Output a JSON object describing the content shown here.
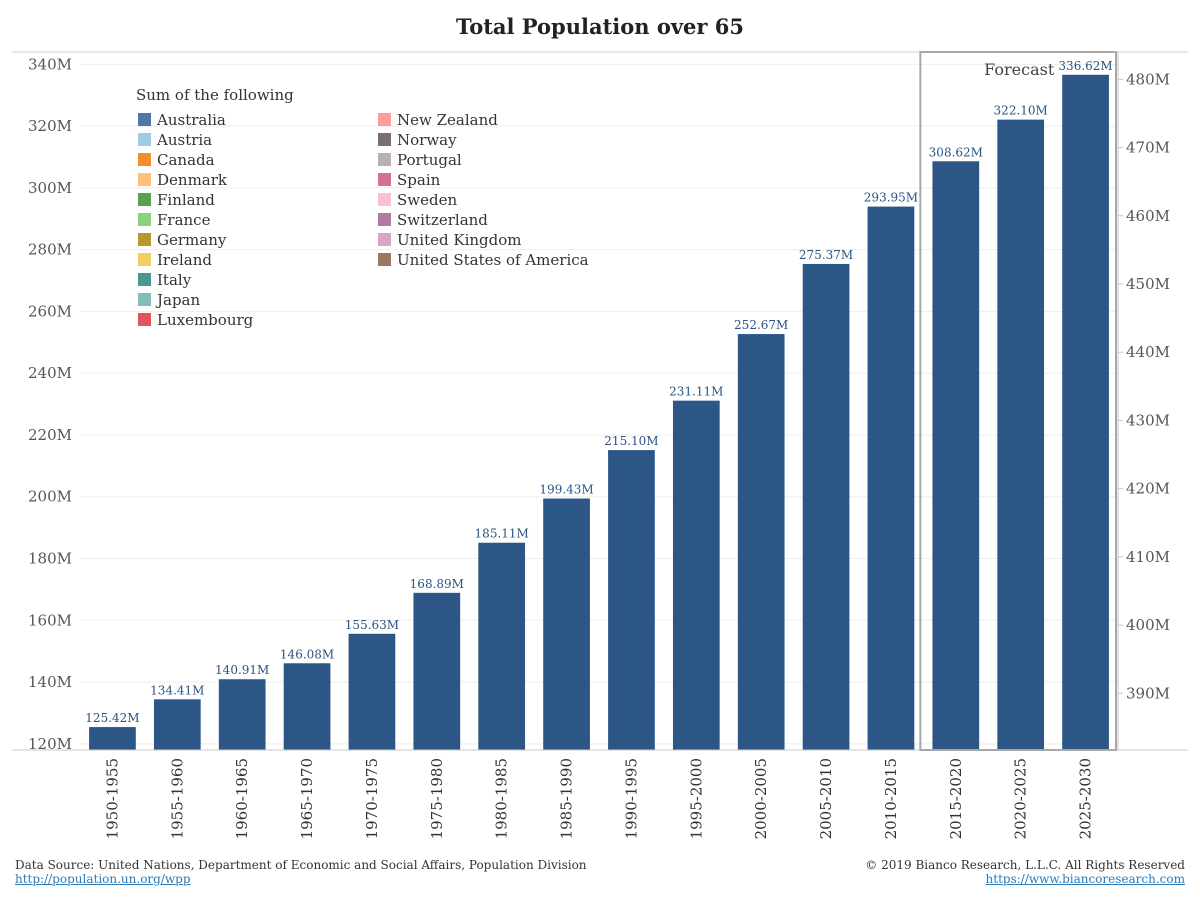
{
  "chart_data": {
    "type": "bar",
    "title": "Total Population over 65",
    "categories": [
      "1950-1955",
      "1955-1960",
      "1960-1965",
      "1965-1970",
      "1970-1975",
      "1975-1980",
      "1980-1985",
      "1985-1990",
      "1990-1995",
      "1995-2000",
      "2000-2005",
      "2005-2010",
      "2010-2015",
      "2015-2020",
      "2020-2025",
      "2025-2030"
    ],
    "values": [
      125.42,
      134.41,
      140.91,
      146.08,
      155.63,
      168.89,
      185.11,
      199.43,
      215.1,
      231.11,
      252.67,
      275.37,
      293.95,
      308.62,
      322.1,
      336.62
    ],
    "value_labels": [
      "125.42M",
      "134.41M",
      "140.91M",
      "146.08M",
      "155.63M",
      "168.89M",
      "185.11M",
      "199.43M",
      "215.10M",
      "231.11M",
      "252.67M",
      "275.37M",
      "293.95M",
      "308.62M",
      "322.10M",
      "336.62M"
    ],
    "bar_color": "#2c5685",
    "unit": "M",
    "ylim": [
      118,
      344
    ],
    "y_ticks": [
      120,
      140,
      160,
      180,
      200,
      220,
      240,
      260,
      280,
      300,
      320,
      340
    ],
    "y_tick_labels": [
      "120M",
      "140M",
      "160M",
      "180M",
      "200M",
      "220M",
      "240M",
      "260M",
      "280M",
      "300M",
      "320M",
      "340M"
    ],
    "y2_ticks": [
      390,
      400,
      410,
      420,
      430,
      440,
      450,
      460,
      470,
      480
    ],
    "y2_tick_labels": [
      "390M",
      "400M",
      "410M",
      "420M",
      "430M",
      "440M",
      "450M",
      "460M",
      "470M",
      "480M"
    ],
    "y2_domain": [
      381.7,
      484.0
    ],
    "forecast_label": "Forecast",
    "forecast_start_category": "2015-2020",
    "legend": {
      "title": "Sum of the following",
      "placement": "top-left",
      "items": [
        {
          "name": "Australia",
          "color": "#4e79a7"
        },
        {
          "name": "Austria",
          "color": "#a0cbe8"
        },
        {
          "name": "Canada",
          "color": "#f28e2b"
        },
        {
          "name": "Denmark",
          "color": "#ffbe7d"
        },
        {
          "name": "Finland",
          "color": "#59a14f"
        },
        {
          "name": "France",
          "color": "#8cd17d"
        },
        {
          "name": "Germany",
          "color": "#b6992d"
        },
        {
          "name": "Ireland",
          "color": "#f1ce63"
        },
        {
          "name": "Italy",
          "color": "#499894"
        },
        {
          "name": "Japan",
          "color": "#86bcb6"
        },
        {
          "name": "Luxembourg",
          "color": "#e15759"
        },
        {
          "name": "New Zealand",
          "color": "#ff9d9a"
        },
        {
          "name": "Norway",
          "color": "#79706e"
        },
        {
          "name": "Portugal",
          "color": "#bab0ac"
        },
        {
          "name": "Spain",
          "color": "#d37295"
        },
        {
          "name": "Sweden",
          "color": "#fabfd2"
        },
        {
          "name": "Switzerland",
          "color": "#b07aa1"
        },
        {
          "name": "United Kingdom",
          "color": "#d4a6c8"
        },
        {
          "name": "United States of America",
          "color": "#9d7660"
        }
      ]
    }
  },
  "footer": {
    "source_text": "Data Source: United Nations, Department of Economic and Social Affairs, Population Division",
    "source_link": "http://population.un.org/wpp",
    "copyright": "© 2019 Bianco Research, L.L.C. All Rights Reserved",
    "site_link": "https://www.biancoresearch.com"
  }
}
